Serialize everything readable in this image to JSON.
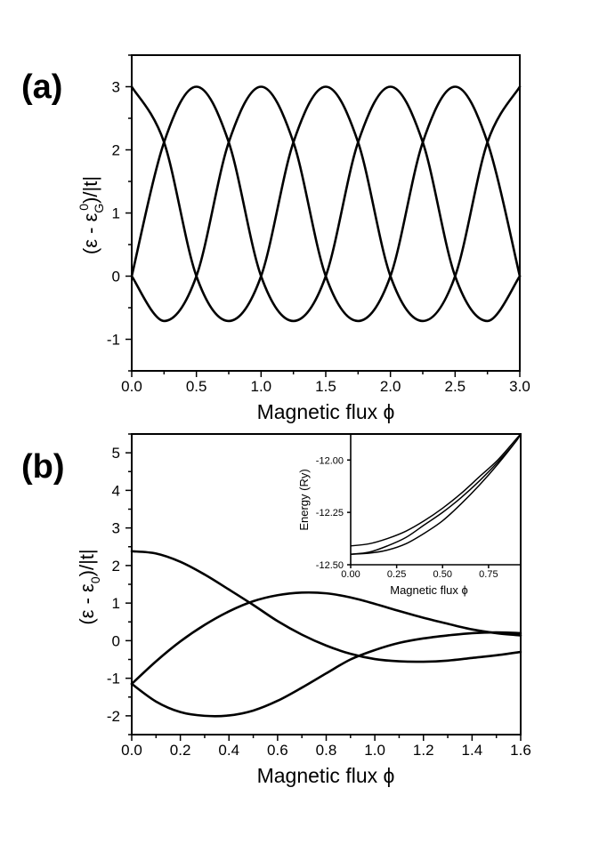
{
  "chart_data": [
    {
      "type": "line",
      "panel_label": "(a)",
      "xlabel": "Magnetic flux ϕ",
      "ylabel_parts": [
        "(ε - ε",
        "G",
        "0",
        ")/|t|"
      ],
      "xlim": [
        0,
        3
      ],
      "ylim": [
        -1.5,
        3.5
      ],
      "xticks": [
        "0.0",
        "0.5",
        "1.0",
        "1.5",
        "2.0",
        "2.5",
        "3.0"
      ],
      "yticks": [
        "-1",
        "0",
        "1",
        "2",
        "3"
      ],
      "series": [
        {
          "x": [
            0,
            0.25,
            0.5,
            0.75,
            1.0,
            1.25,
            1.5,
            1.75,
            2.0,
            2.25,
            2.5,
            2.75,
            3.0
          ],
          "values": [
            3,
            2.12,
            0,
            -0.71,
            0,
            2.12,
            3,
            2.12,
            0,
            -0.71,
            0,
            2.12,
            3
          ]
        },
        {
          "x": [
            0,
            0.25,
            0.5,
            0.75,
            1.0,
            1.25,
            1.5,
            1.75,
            2.0,
            2.25,
            2.5,
            2.75,
            3.0
          ],
          "values": [
            0,
            2.12,
            3,
            2.12,
            0,
            -0.71,
            0,
            2.12,
            3,
            2.12,
            0,
            -0.71,
            0
          ]
        },
        {
          "x": [
            0,
            0.25,
            0.5,
            0.75,
            1.0,
            1.25,
            1.5,
            1.75,
            2.0,
            2.25,
            2.5,
            2.75,
            3.0
          ],
          "values": [
            0,
            -0.71,
            0,
            2.12,
            3,
            2.12,
            0,
            -0.71,
            0,
            2.12,
            3,
            2.12,
            0
          ]
        }
      ],
      "grid": false
    },
    {
      "type": "line",
      "panel_label": "(b)",
      "xlabel": "Magnetic flux ϕ",
      "ylabel_parts": [
        "(ε - ε",
        "0",
        ")/|t|"
      ],
      "xlim": [
        0,
        1.6
      ],
      "ylim": [
        -2.5,
        5.5
      ],
      "xticks": [
        "0.0",
        "0.2",
        "0.4",
        "0.6",
        "0.8",
        "1.0",
        "1.2",
        "1.4",
        "1.6"
      ],
      "yticks": [
        "-2",
        "-1",
        "0",
        "1",
        "2",
        "3",
        "4",
        "5"
      ],
      "series": [
        {
          "x": [
            0,
            0.1,
            0.2,
            0.3,
            0.4,
            0.5,
            0.6,
            0.7,
            0.8,
            0.9,
            1.0,
            1.1,
            1.2,
            1.3,
            1.4,
            1.5,
            1.6
          ],
          "values": [
            2.38,
            2.32,
            2.1,
            1.76,
            1.36,
            0.95,
            0.52,
            0.16,
            -0.13,
            -0.35,
            -0.49,
            -0.55,
            -0.56,
            -0.53,
            -0.46,
            -0.39,
            -0.3
          ]
        },
        {
          "x": [
            0,
            0.1,
            0.2,
            0.3,
            0.4,
            0.5,
            0.6,
            0.7,
            0.8,
            0.9,
            1.0,
            1.1,
            1.2,
            1.3,
            1.4,
            1.5,
            1.6
          ],
          "values": [
            -1.15,
            -0.55,
            -0.02,
            0.42,
            0.78,
            1.05,
            1.21,
            1.28,
            1.26,
            1.15,
            0.98,
            0.79,
            0.61,
            0.45,
            0.3,
            0.2,
            0.14
          ]
        },
        {
          "x": [
            0,
            0.1,
            0.2,
            0.3,
            0.4,
            0.5,
            0.6,
            0.7,
            0.8,
            0.9,
            1.0,
            1.1,
            1.2,
            1.3,
            1.4,
            1.5,
            1.6
          ],
          "values": [
            -1.15,
            -1.62,
            -1.9,
            -2.0,
            -1.99,
            -1.86,
            -1.6,
            -1.25,
            -0.87,
            -0.5,
            -0.25,
            -0.06,
            0.06,
            0.14,
            0.2,
            0.22,
            0.2
          ]
        }
      ],
      "grid": false,
      "inset": {
        "xlabel": "Magnetic flux ϕ",
        "ylabel": "Energy (Ry)",
        "xlim": [
          0,
          0.92
        ],
        "ylim": [
          -12.5,
          -11.88
        ],
        "xticks": [
          "0.00",
          "0.25",
          "0.50",
          "0.75"
        ],
        "yticks": [
          "-12.00",
          "-12.25",
          "-12.50"
        ],
        "series": [
          {
            "x": [
              0,
              0.1,
              0.2,
              0.3,
              0.4,
              0.5,
              0.6,
              0.7,
              0.8,
              0.9,
              0.92
            ],
            "values": [
              -12.41,
              -12.4,
              -12.375,
              -12.34,
              -12.29,
              -12.23,
              -12.16,
              -12.08,
              -12.0,
              -11.9,
              -11.88
            ]
          },
          {
            "x": [
              0,
              0.1,
              0.2,
              0.3,
              0.4,
              0.5,
              0.6,
              0.7,
              0.8,
              0.9,
              0.92
            ],
            "values": [
              -12.45,
              -12.44,
              -12.41,
              -12.37,
              -12.31,
              -12.25,
              -12.18,
              -12.1,
              -12.01,
              -11.91,
              -11.88
            ]
          },
          {
            "x": [
              0,
              0.1,
              0.2,
              0.3,
              0.4,
              0.5,
              0.6,
              0.7,
              0.8,
              0.9,
              0.92
            ],
            "values": [
              -12.45,
              -12.445,
              -12.43,
              -12.4,
              -12.35,
              -12.29,
              -12.21,
              -12.12,
              -12.02,
              -11.91,
              -11.88
            ]
          }
        ]
      }
    }
  ]
}
